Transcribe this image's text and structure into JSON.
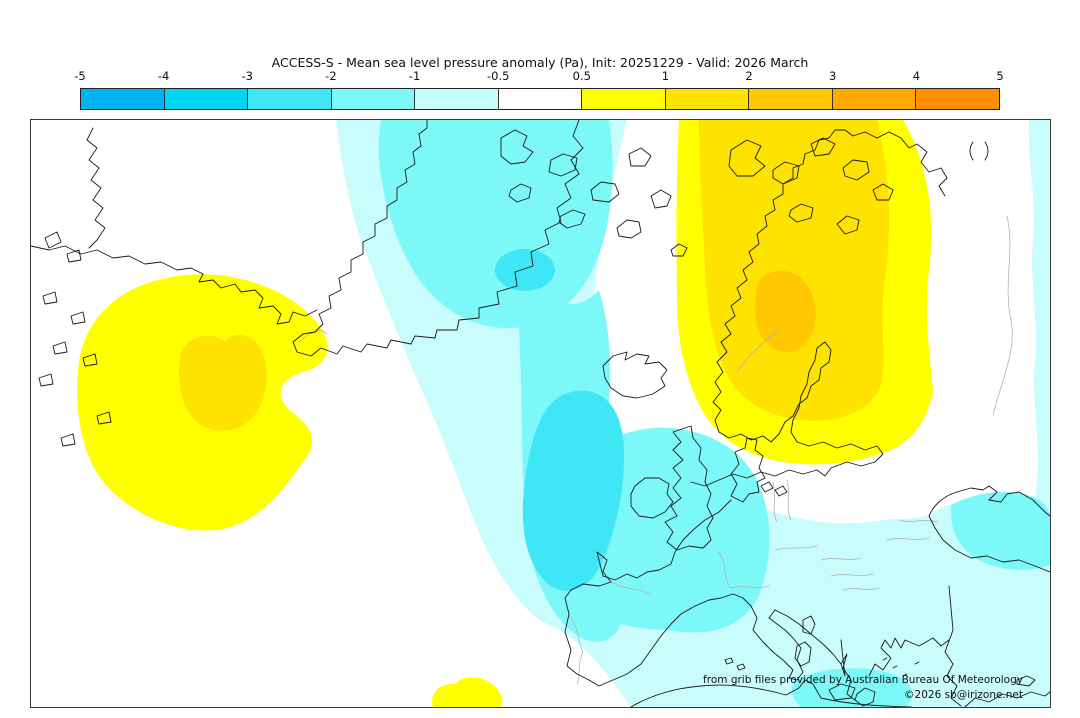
{
  "title": "ACCESS-S - Mean sea level pressure anomaly (Pa), Init: 20251229 - Valid: 2026 March",
  "colorbar": {
    "ticks": [
      "-5",
      "-4",
      "-3",
      "-2",
      "-1",
      "-0.5",
      "0.5",
      "1",
      "2",
      "3",
      "4",
      "5"
    ],
    "segments": [
      {
        "label": "-5 to -4",
        "color": "#00b2ef"
      },
      {
        "label": "-4 to -3",
        "color": "#00d6f2"
      },
      {
        "label": "-3 to -2",
        "color": "#3fe6f5"
      },
      {
        "label": "-2 to -1",
        "color": "#7df8f9"
      },
      {
        "label": "-1 to -0.5",
        "color": "#c9fcfc"
      },
      {
        "label": "-0.5 to 0.5",
        "color": "#ffffff"
      },
      {
        "label": "0.5 to 1",
        "color": "#ffff00"
      },
      {
        "label": "1 to 2",
        "color": "#ffe300"
      },
      {
        "label": "2 to 3",
        "color": "#ffc800"
      },
      {
        "label": "3 to 4",
        "color": "#ffa800"
      },
      {
        "label": "4 to 5",
        "color": "#ff8e00"
      }
    ]
  },
  "map": {
    "attribution_line1": "from grib files provided by Australian Bureau Of Meteorology",
    "attribution_line2": "©2026 sb@irizone.net",
    "coastline_color": "#1a1a1a",
    "country_border_color": "#b3b3b3",
    "frame_color": "#3a3a3a",
    "anomaly_regions": [
      {
        "name": "west-atlantic-positive",
        "value_range": "+0.5 to +2",
        "colors": [
          "#ffff00",
          "#ffe300"
        ]
      },
      {
        "name": "scandinavia-positive",
        "value_range": "+0.5 to +3",
        "colors": [
          "#ffff00",
          "#ffe300",
          "#ffc800"
        ]
      },
      {
        "name": "central-atlantic-negative",
        "value_range": "-0.5 to -3",
        "colors": [
          "#c9fcfc",
          "#7df8f9",
          "#3fe6f5"
        ]
      },
      {
        "name": "europe-negative",
        "value_range": "-0.5 to -2",
        "colors": [
          "#c9fcfc",
          "#7df8f9"
        ]
      },
      {
        "name": "morocco-coast-positive",
        "value_range": "+0.5 to +1",
        "colors": [
          "#ffff00"
        ]
      }
    ]
  }
}
